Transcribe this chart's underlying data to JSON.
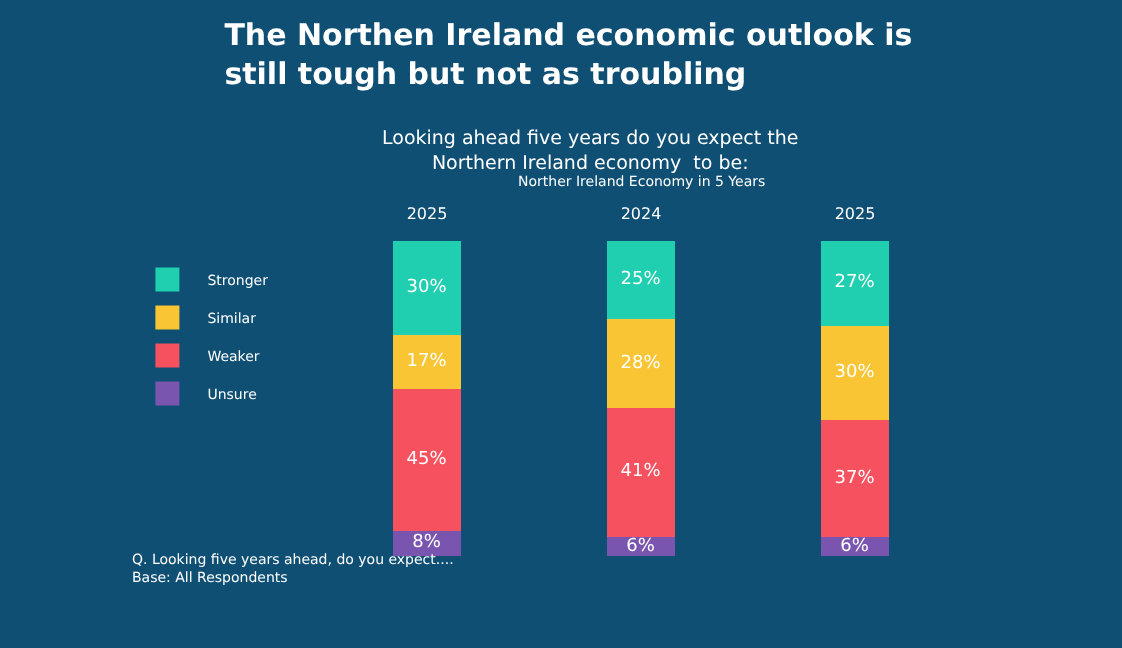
{
  "chart_data": {
    "type": "bar",
    "stacked": true,
    "title": "The Northen Ireland economic outlook is still tough but not as troubling",
    "subtitle": "Looking ahead five years do you expect the  Northern Ireland economy  to be:",
    "annotations": [
      "Norther Ireland Economy in 5 Years",
      "Q. Looking five years ahead, do you expect....",
      "Base: All Respondents"
    ],
    "categories": [
      "2025",
      "2024",
      "2025"
    ],
    "series": [
      {
        "name": "Unsure",
        "color": "#7a55b0",
        "values": [
          8,
          6,
          6
        ],
        "value_labels": [
          "8%",
          "6%",
          "6%"
        ]
      },
      {
        "name": "Weaker",
        "color": "#f5515f",
        "values": [
          45,
          41,
          37
        ],
        "value_labels": [
          "45%",
          "41%",
          "37%"
        ]
      },
      {
        "name": "Similar",
        "color": "#f9c535",
        "values": [
          17,
          28,
          30
        ],
        "value_labels": [
          "17%",
          "28%",
          "30%"
        ]
      },
      {
        "name": "Stronger",
        "color": "#1fcfb0",
        "values": [
          30,
          25,
          27
        ],
        "value_labels": [
          "30%",
          "25%",
          "27%"
        ]
      }
    ],
    "legend": "left"
  }
}
